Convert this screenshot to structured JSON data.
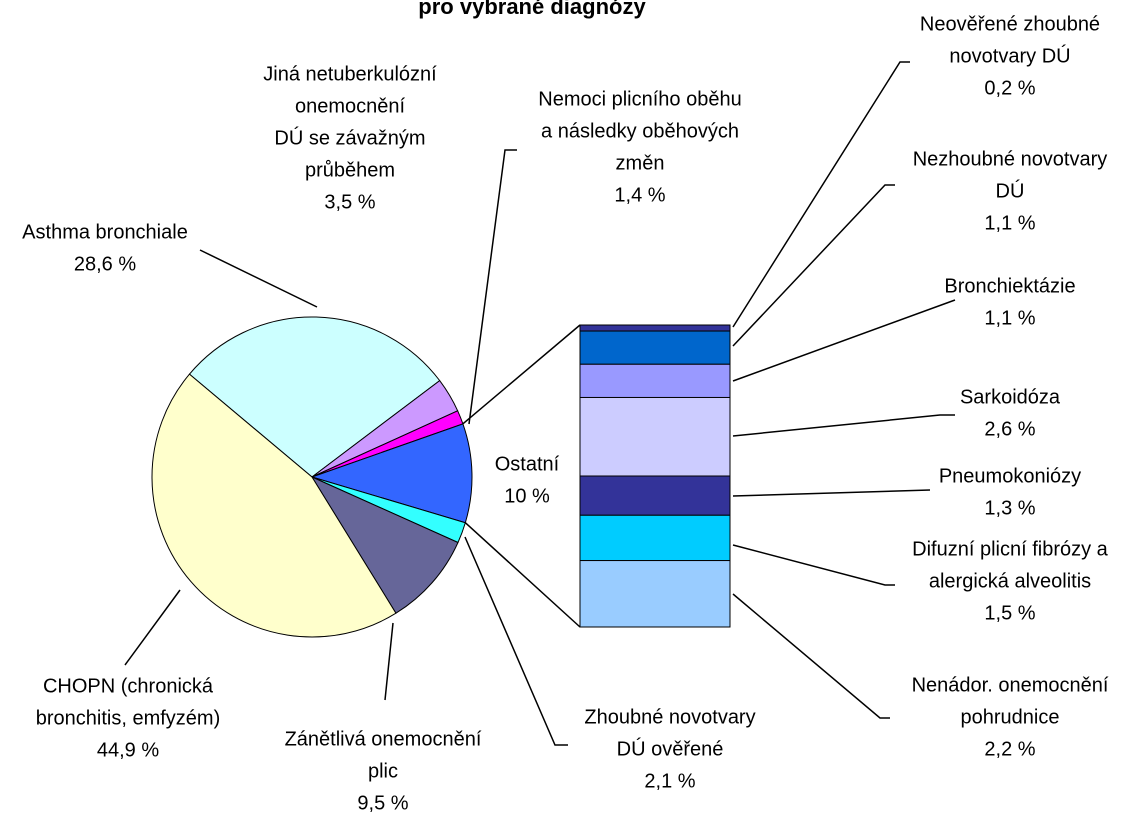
{
  "chart_data": {
    "type": "pie-of-bar",
    "title": "pro vybrané diagnózy",
    "categories": [
      [
        "Asthma bronchiale"
      ],
      [
        "Jiná netuberkulózní",
        "onemocnění",
        "DÚ se závažným",
        "průběhem"
      ],
      [
        "Nemoci plicního oběhu",
        "a následky oběhových",
        "změn"
      ],
      [
        "Ostatní"
      ],
      [
        "Zhoubné novotvary",
        "DÚ ověřené"
      ],
      [
        "Zánětlivá onemocnění",
        "plic"
      ],
      [
        "CHOPN (chronická",
        "bronchitis, emfyzém)"
      ]
    ],
    "values": [
      28.6,
      3.5,
      1.4,
      10,
      2.1,
      9.5,
      44.9
    ],
    "value_labels": [
      "28,6 %",
      "3,5 %",
      "1,4 %",
      "10  %",
      "2,1 %",
      "9,5 %",
      "44,9 %"
    ],
    "colors": [
      "#ccffff",
      "#cc99ff",
      "#ff00ff",
      "#3366ff",
      "#33ffff",
      "#666699",
      "#ffffcc"
    ],
    "bar": {
      "categories": [
        [
          "Neověřené zhoubné",
          "novotvary DÚ"
        ],
        [
          "Nezhoubné novotvary",
          "DÚ"
        ],
        [
          "Bronchiektázie"
        ],
        [
          "Sarkoidóza"
        ],
        [
          "Pneumokoniózy"
        ],
        [
          "Difuzní plicní fibrózy a",
          "alergická alveolitis"
        ],
        [
          "Nenádor. onemocnění",
          "pohrudnice"
        ]
      ],
      "values": [
        0.2,
        1.1,
        1.1,
        2.6,
        1.3,
        1.5,
        2.2
      ],
      "value_labels": [
        "0,2 %",
        "1,1 %",
        "1,1 %",
        "2,6 %",
        "1,3 %",
        "1,5 %",
        "2,2 %"
      ],
      "colors": [
        "#333399",
        "#0066cc",
        "#9999ff",
        "#ccccff",
        "#333399",
        "#00ccff",
        "#99ccff"
      ]
    }
  }
}
